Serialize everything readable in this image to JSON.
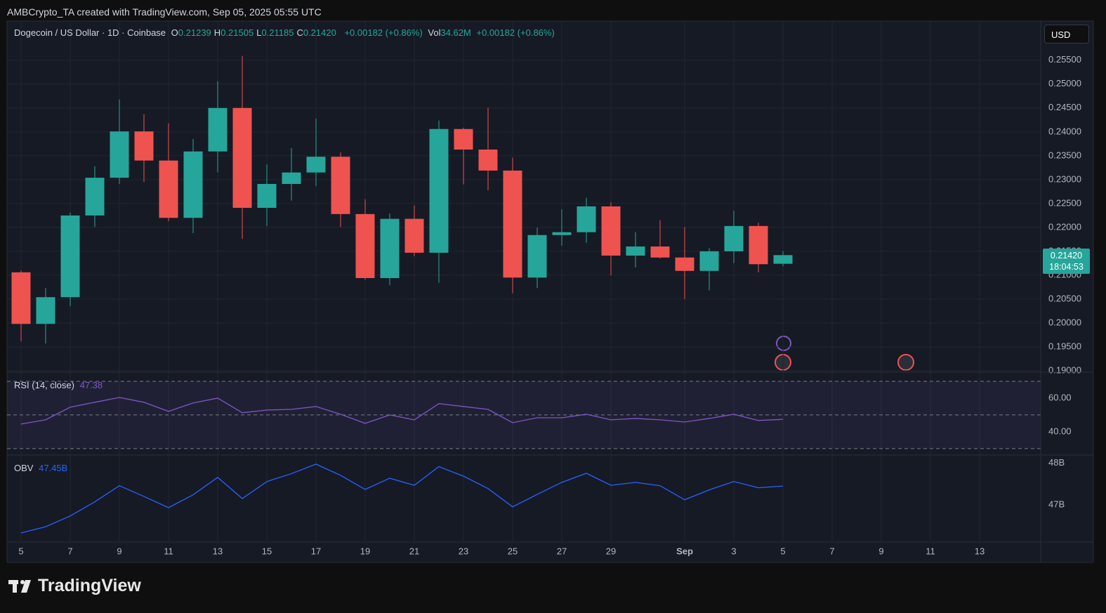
{
  "header": {
    "text": "AMBCrypto_TA created with TradingView.com, Sep 05, 2025 05:55 UTC"
  },
  "footer": {
    "logo": "TradingView"
  },
  "chart_data": [
    {
      "type": "candlestick",
      "title": "Dogecoin / US Dollar · 1D · Coinbase",
      "currency": "USD",
      "ohlc_legend": [
        {
          "label": "O",
          "value": "0.21239"
        },
        {
          "label": "H",
          "value": "0.21505"
        },
        {
          "label": "L",
          "value": "0.21185"
        },
        {
          "label": "C",
          "value": "0.21420"
        }
      ],
      "change": "+0.00182 (+0.86%)",
      "volume": {
        "label": "Vol",
        "value": "34.62M",
        "change": "+0.00182 (+0.86%)"
      },
      "last_price_label": "0.21420",
      "countdown": "18:04:53",
      "categories": [
        "5",
        null,
        "7",
        null,
        "9",
        null,
        "11",
        null,
        "13",
        null,
        "15",
        null,
        "17",
        null,
        "19",
        null,
        "21",
        null,
        "23",
        null,
        "25",
        null,
        "27",
        null,
        "29",
        null,
        null,
        "Sep",
        null,
        "3",
        null,
        "5",
        null,
        "7",
        null,
        "9",
        null,
        "11",
        null,
        "13"
      ],
      "open": [
        0.2106,
        0.1998,
        0.2054,
        0.2225,
        0.2304,
        0.2401,
        0.234,
        0.222,
        0.2359,
        0.245,
        0.2241,
        0.2291,
        0.2315,
        0.2348,
        0.2228,
        0.2094,
        0.2218,
        0.2147,
        0.2406,
        0.2363,
        0.2319,
        0.2095,
        0.2184,
        0.219,
        0.2244,
        0.2141,
        0.216,
        0.2137,
        0.2109,
        0.215,
        0.2203,
        0.21239,
        null,
        null,
        null,
        null,
        null,
        null,
        null,
        null
      ],
      "high": [
        0.211,
        0.2073,
        0.2231,
        0.2328,
        0.2468,
        0.2437,
        0.2418,
        0.2385,
        0.2506,
        0.2559,
        0.2332,
        0.2366,
        0.2428,
        0.2357,
        0.2259,
        0.2229,
        0.2246,
        0.2424,
        0.2409,
        0.2451,
        0.2346,
        0.22,
        0.2238,
        0.2262,
        0.2253,
        0.219,
        0.2215,
        0.2201,
        0.2157,
        0.2235,
        0.221,
        0.21505,
        null,
        null,
        null,
        null,
        null,
        null,
        null,
        null
      ],
      "low": [
        0.1962,
        0.1957,
        0.2035,
        0.2201,
        0.2291,
        0.2295,
        0.2213,
        0.2188,
        0.2315,
        0.2176,
        0.2203,
        0.2256,
        0.2287,
        0.2201,
        0.2091,
        0.2079,
        0.214,
        0.2084,
        0.229,
        0.2278,
        0.2062,
        0.2073,
        0.2162,
        0.2168,
        0.21,
        0.2116,
        0.2135,
        0.205,
        0.2068,
        0.2125,
        0.2106,
        0.21185,
        null,
        null,
        null,
        null,
        null,
        null,
        null,
        null
      ],
      "close": [
        0.1998,
        0.2054,
        0.2225,
        0.2304,
        0.2401,
        0.234,
        0.222,
        0.2359,
        0.245,
        0.2241,
        0.2291,
        0.2315,
        0.2348,
        0.2228,
        0.2094,
        0.2218,
        0.2147,
        0.2406,
        0.2363,
        0.2319,
        0.2095,
        0.2184,
        0.219,
        0.2244,
        0.2141,
        0.216,
        0.2137,
        0.2109,
        0.215,
        0.2203,
        0.2123,
        0.2142,
        null,
        null,
        null,
        null,
        null,
        null,
        null,
        null
      ],
      "up_color": "#26a69a",
      "down_color": "#ef5350",
      "ylim": [
        0.1897,
        0.2632
      ],
      "yticks": [
        {
          "value": 0.19,
          "label": "0.19000"
        },
        {
          "value": 0.195,
          "label": "0.19500"
        },
        {
          "value": 0.2,
          "label": "0.20000"
        },
        {
          "value": 0.205,
          "label": "0.20500"
        },
        {
          "value": 0.21,
          "label": "0.21000"
        },
        {
          "value": 0.215,
          "label": "0.21500"
        },
        {
          "value": 0.22,
          "label": "0.22000"
        },
        {
          "value": 0.225,
          "label": "0.22500"
        },
        {
          "value": 0.23,
          "label": "0.23000"
        },
        {
          "value": 0.235,
          "label": "0.23500"
        },
        {
          "value": 0.24,
          "label": "0.24000"
        },
        {
          "value": 0.245,
          "label": "0.24500"
        },
        {
          "value": 0.25,
          "label": "0.25000"
        },
        {
          "value": 0.255,
          "label": "0.25500"
        }
      ],
      "grid": true
    },
    {
      "type": "line",
      "title": "RSI (14, close)",
      "last_label": "47.38",
      "color": "#7e57c2",
      "values": [
        44.6,
        47.1,
        54.6,
        57.5,
        60.4,
        57.5,
        52.1,
        57.1,
        60.0,
        51.3,
        52.9,
        53.3,
        55.0,
        50.4,
        45.0,
        50.0,
        47.1,
        56.7,
        55.0,
        53.3,
        45.4,
        48.3,
        48.3,
        50.4,
        47.1,
        47.9,
        47.1,
        45.8,
        47.9,
        50.4,
        46.7,
        47.38
      ],
      "band_levels": [
        70,
        50,
        30
      ],
      "ylim": [
        26.2,
        75.4
      ],
      "yticks": [
        {
          "value": 60,
          "label": "60.00"
        },
        {
          "value": 40,
          "label": "40.00"
        }
      ]
    },
    {
      "type": "line",
      "title": "OBV",
      "last_label": "47.45B",
      "color": "#2962ff",
      "values": [
        46.32,
        46.47,
        46.73,
        47.07,
        47.46,
        47.2,
        46.93,
        47.24,
        47.66,
        47.15,
        47.56,
        47.75,
        47.98,
        47.71,
        47.37,
        47.64,
        47.47,
        47.92,
        47.69,
        47.39,
        46.95,
        47.25,
        47.54,
        47.76,
        47.47,
        47.54,
        47.46,
        47.12,
        47.36,
        47.56,
        47.41,
        47.45
      ],
      "ylim": [
        46.1,
        48.2
      ],
      "yticks": [
        {
          "value": 48,
          "label": "48B"
        },
        {
          "value": 47,
          "label": "47B"
        }
      ]
    }
  ]
}
